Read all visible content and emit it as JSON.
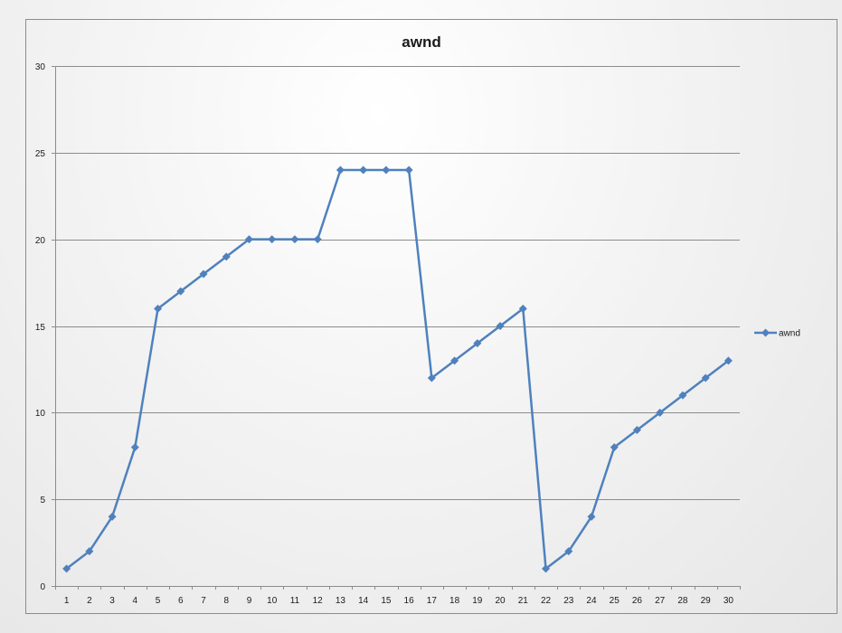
{
  "chart_data": {
    "type": "line",
    "title": "awnd",
    "xlabel": "",
    "ylabel": "",
    "categories": [
      "1",
      "2",
      "3",
      "4",
      "5",
      "6",
      "7",
      "8",
      "9",
      "10",
      "11",
      "12",
      "13",
      "14",
      "15",
      "16",
      "17",
      "18",
      "19",
      "20",
      "21",
      "22",
      "23",
      "24",
      "25",
      "26",
      "27",
      "28",
      "29",
      "30"
    ],
    "series": [
      {
        "name": "awnd",
        "color": "#4f81bd",
        "marker": "diamond",
        "values": [
          1,
          2,
          4,
          8,
          16,
          17,
          18,
          19,
          20,
          20,
          20,
          20,
          24,
          24,
          24,
          24,
          12,
          13,
          14,
          15,
          16,
          1,
          2,
          4,
          8,
          9,
          10,
          11,
          12,
          13
        ]
      }
    ],
    "ylim": [
      0,
      30
    ],
    "yticks": [
      0,
      5,
      10,
      15,
      20,
      25,
      30
    ],
    "grid": "horizontal",
    "legend": "right"
  }
}
